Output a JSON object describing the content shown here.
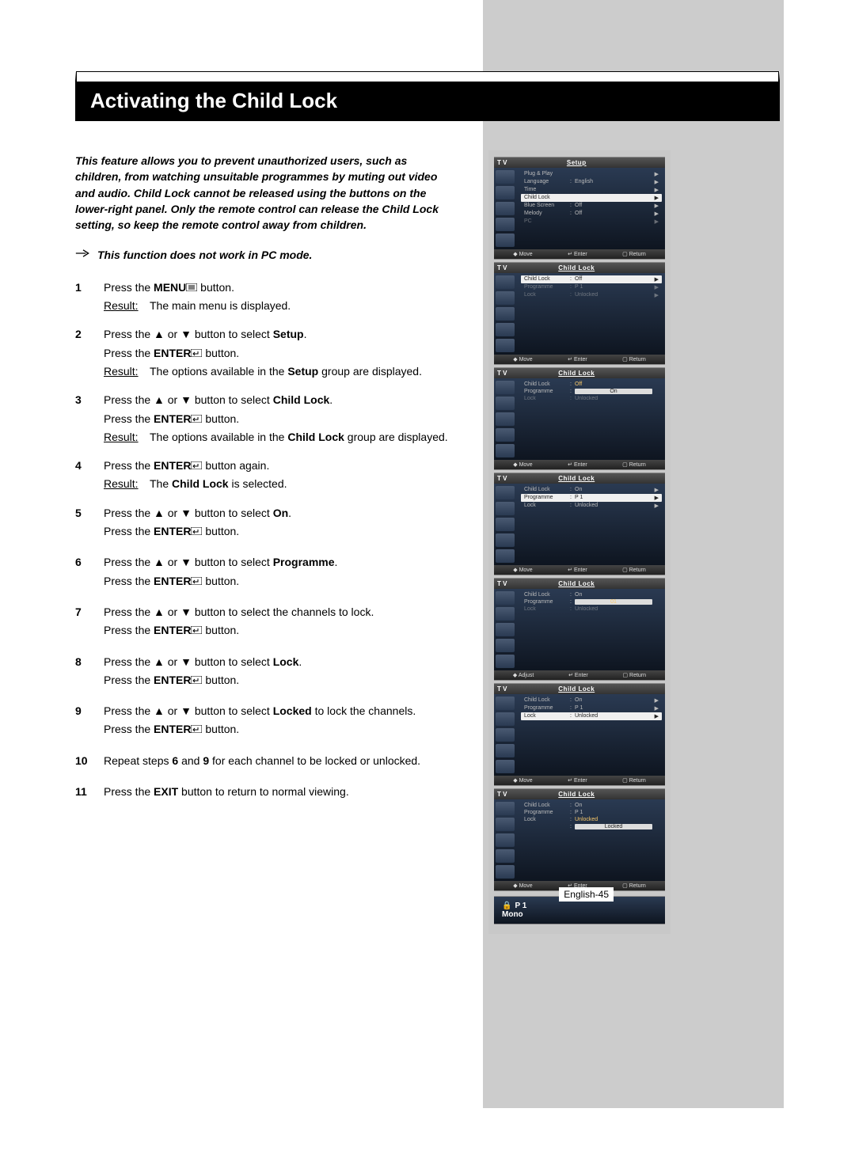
{
  "title": "Activating the Child Lock",
  "intro": "This feature allows you to prevent unauthorized users, such as children, from watching unsuitable programmes by muting out video and audio. Child Lock cannot be released using the buttons on the lower-right panel. Only the remote control can release the Child Lock setting, so keep the remote control away from children.",
  "note": "This function does not work in PC mode.",
  "steps": [
    {
      "num": "1",
      "lines": [
        "Press the <b>MENU</b><svg class='isvg' width='14' height='10'><rect x='0' y='0' width='14' height='10' fill='none' stroke='#000'/><line x1='3' y1='3' x2='11' y2='3' stroke='#000'/><line x1='3' y1='5' x2='11' y2='5' stroke='#000'/><line x1='3' y1='7' x2='11' y2='7' stroke='#000'/></svg> button."
      ],
      "result": "The main menu is displayed."
    },
    {
      "num": "2",
      "lines": [
        "Press the ▲ or ▼ button to select <b>Setup</b>.",
        "Press the <b>ENTER</b><svg class='isvg' width='14' height='10'><rect x='0' y='0' width='14' height='10' fill='none' stroke='#000'/><path d='M9 3 L9 6 L4 6 M5 4 L3 6 L5 8' fill='none' stroke='#000'/></svg> button."
      ],
      "result": "The options available in the <b>Setup</b> group are displayed."
    },
    {
      "num": "3",
      "lines": [
        "Press the ▲ or ▼ button to select <b>Child Lock</b>.",
        "Press the <b>ENTER</b><svg class='isvg' width='14' height='10'><rect x='0' y='0' width='14' height='10' fill='none' stroke='#000'/><path d='M9 3 L9 6 L4 6 M5 4 L3 6 L5 8' fill='none' stroke='#000'/></svg> button."
      ],
      "result": "The options available in the <b>Child Lock</b> group are displayed."
    },
    {
      "num": "4",
      "lines": [
        "Press the <b>ENTER</b><svg class='isvg' width='14' height='10'><rect x='0' y='0' width='14' height='10' fill='none' stroke='#000'/><path d='M9 3 L9 6 L4 6 M5 4 L3 6 L5 8' fill='none' stroke='#000'/></svg> button again."
      ],
      "result": "The <b>Child Lock</b> is selected."
    },
    {
      "num": "5",
      "lines": [
        "Press the ▲ or ▼ button to select <b>On</b>.",
        "Press the <b>ENTER</b><svg class='isvg' width='14' height='10'><rect x='0' y='0' width='14' height='10' fill='none' stroke='#000'/><path d='M9 3 L9 6 L4 6 M5 4 L3 6 L5 8' fill='none' stroke='#000'/></svg> button."
      ],
      "result": null
    },
    {
      "num": "6",
      "lines": [
        "Press the ▲ or ▼ button to select <b>Programme</b>.",
        "Press the <b>ENTER</b><svg class='isvg' width='14' height='10'><rect x='0' y='0' width='14' height='10' fill='none' stroke='#000'/><path d='M9 3 L9 6 L4 6 M5 4 L3 6 L5 8' fill='none' stroke='#000'/></svg> button."
      ],
      "result": null
    },
    {
      "num": "7",
      "lines": [
        "Press the ▲ or ▼ button to select the channels to lock.",
        "Press the <b>ENTER</b><svg class='isvg' width='14' height='10'><rect x='0' y='0' width='14' height='10' fill='none' stroke='#000'/><path d='M9 3 L9 6 L4 6 M5 4 L3 6 L5 8' fill='none' stroke='#000'/></svg> button."
      ],
      "result": null
    },
    {
      "num": "8",
      "lines": [
        "Press the ▲ or ▼ button to select <b>Lock</b>.",
        "Press the <b>ENTER</b><svg class='isvg' width='14' height='10'><rect x='0' y='0' width='14' height='10' fill='none' stroke='#000'/><path d='M9 3 L9 6 L4 6 M5 4 L3 6 L5 8' fill='none' stroke='#000'/></svg> button."
      ],
      "result": null
    },
    {
      "num": "9",
      "lines": [
        "Press the ▲ or ▼ button to select <b>Locked</b> to lock the channels.",
        "Press the <b>ENTER</b><svg class='isvg' width='14' height='10'><rect x='0' y='0' width='14' height='10' fill='none' stroke='#000'/><path d='M9 3 L9 6 L4 6 M5 4 L3 6 L5 8' fill='none' stroke='#000'/></svg> button."
      ],
      "result": null
    },
    {
      "num": "10",
      "lines": [
        "Repeat steps <b>6</b> and <b>9</b> for each channel to be locked or unlocked."
      ],
      "result": null
    },
    {
      "num": "11",
      "lines": [
        "Press the <b>EXIT</b> button to return to normal viewing."
      ],
      "result": null
    }
  ],
  "result_label": "Result:",
  "osd_common": {
    "tv": "T V",
    "footer_move": "Move",
    "footer_adjust": "Adjust",
    "footer_enter": "Enter",
    "footer_return": "Return"
  },
  "osd_screens": [
    {
      "title": "Setup",
      "rows": [
        {
          "label": "Plug & Play",
          "val": "",
          "arrow": "▶",
          "sel": false
        },
        {
          "label": "Language",
          "val": "English",
          "arrow": "▶",
          "sel": false
        },
        {
          "label": "Time",
          "val": "",
          "arrow": "▶",
          "sel": false
        },
        {
          "label": "Child Lock",
          "val": "",
          "arrow": "▶",
          "sel": true
        },
        {
          "label": "Blue Screen",
          "val": "Off",
          "arrow": "▶",
          "sel": false
        },
        {
          "label": "Melody",
          "val": "Off",
          "arrow": "▶",
          "sel": false
        },
        {
          "label": "PC",
          "val": "",
          "arrow": "▶",
          "sel": false,
          "dim": true
        }
      ],
      "footer_left": "Move"
    },
    {
      "title": "Child Lock",
      "rows": [
        {
          "label": "Child Lock",
          "val": "Off",
          "arrow": "▶",
          "sel": true
        },
        {
          "label": "Programme",
          "val": "P   1",
          "arrow": "▶",
          "sel": false,
          "dim": true
        },
        {
          "label": "Lock",
          "val": "Unlocked",
          "arrow": "▶",
          "sel": false,
          "dim": true
        }
      ],
      "footer_left": "Move"
    },
    {
      "title": "Child Lock",
      "rows": [
        {
          "label": "Child Lock",
          "val": "Off",
          "arrow": "",
          "sel": false,
          "highlight": true
        },
        {
          "label": "Programme",
          "val_box": "On",
          "arrow": "",
          "sel": false
        },
        {
          "label": "Lock",
          "val": "Unlocked",
          "arrow": "",
          "sel": false,
          "dim": true
        }
      ],
      "footer_left": "Move"
    },
    {
      "title": "Child Lock",
      "rows": [
        {
          "label": "Child Lock",
          "val": "On",
          "arrow": "▶",
          "sel": false
        },
        {
          "label": "Programme",
          "val": "P   1",
          "arrow": "▶",
          "sel": true
        },
        {
          "label": "Lock",
          "val": "Unlocked",
          "arrow": "▶",
          "sel": false
        }
      ],
      "footer_left": "Move"
    },
    {
      "title": "Child Lock",
      "rows": [
        {
          "label": "Child Lock",
          "val": "On",
          "arrow": "",
          "sel": false
        },
        {
          "label": "Programme",
          "val_box": "01",
          "arrow": "",
          "sel": false,
          "highlight": true
        },
        {
          "label": "Lock",
          "val": "Unlocked",
          "arrow": "",
          "sel": false,
          "dim": true
        }
      ],
      "footer_left": "Adjust"
    },
    {
      "title": "Child Lock",
      "rows": [
        {
          "label": "Child Lock",
          "val": "On",
          "arrow": "▶",
          "sel": false
        },
        {
          "label": "Programme",
          "val": "P   1",
          "arrow": "▶",
          "sel": false
        },
        {
          "label": "Lock",
          "val": "Unlocked",
          "arrow": "▶",
          "sel": true
        }
      ],
      "footer_left": "Move"
    },
    {
      "title": "Child Lock",
      "rows": [
        {
          "label": "Child Lock",
          "val": "On",
          "arrow": "",
          "sel": false
        },
        {
          "label": "Programme",
          "val": "P   1",
          "arrow": "",
          "sel": false
        },
        {
          "label": "Lock",
          "val": "Unlocked",
          "arrow": "",
          "sel": false,
          "highlight": true
        },
        {
          "label": "",
          "val_box": "Locked",
          "arrow": "",
          "sel": false
        }
      ],
      "footer_left": "Move"
    }
  ],
  "mini_panel": {
    "line1_icon": "🔒",
    "line1": "P 1",
    "line2": "Mono"
  },
  "page_num": "English-45",
  "colors": {
    "osd_bg_top": "#2a3a52",
    "osd_bg_bottom": "#0e1520",
    "sel_bg": "#f0f0f0",
    "sel_fg": "#222222",
    "highlight": "#f9c96a",
    "sidebar_gray": "#cccccc"
  }
}
